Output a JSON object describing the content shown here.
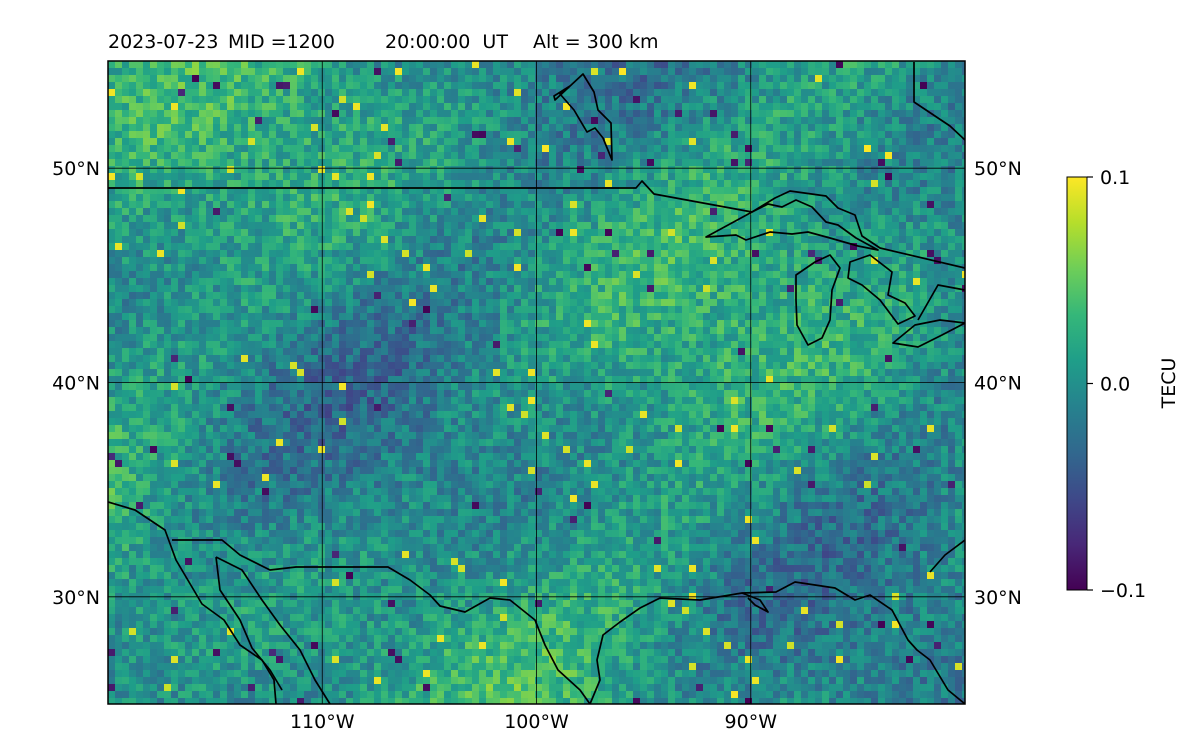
{
  "title": {
    "date": "2023-07-23",
    "mid": "MID =1200",
    "time": "20:00:00  UT",
    "alt": "Alt = 300 km"
  },
  "map": {
    "lon_range": [
      -120,
      -80
    ],
    "lat_range": [
      25,
      55
    ],
    "projection": "plate carree",
    "gridlines": true,
    "lon_ticks": [
      {
        "value": -110,
        "label": "110°W"
      },
      {
        "value": -100,
        "label": "100°W"
      },
      {
        "value": -90,
        "label": "90°W"
      }
    ],
    "lat_ticks": [
      {
        "value": 50,
        "label": "50°N"
      },
      {
        "value": 40,
        "label": "40°N"
      },
      {
        "value": 30,
        "label": "30°N"
      }
    ],
    "field": "TEC perturbation",
    "features": [
      "coastlines",
      "US-Canada border",
      "US-Mexico border",
      "Great Lakes",
      "Gulf of Mexico coast",
      "Gulf of California",
      "Hudson Bay coast"
    ]
  },
  "colorbar": {
    "label": "TECU",
    "colormap": "viridis",
    "range": [
      -0.1,
      0.1
    ],
    "ticks": [
      {
        "value": 0.1,
        "label": "0.1"
      },
      {
        "value": 0.0,
        "label": "0.0"
      },
      {
        "value": -0.1,
        "label": "−0.1"
      }
    ],
    "colors": [
      "#440154",
      "#482878",
      "#3e4989",
      "#31688e",
      "#26828e",
      "#1f9e89",
      "#35b779",
      "#6ece58",
      "#b5de2b",
      "#fde725"
    ]
  }
}
